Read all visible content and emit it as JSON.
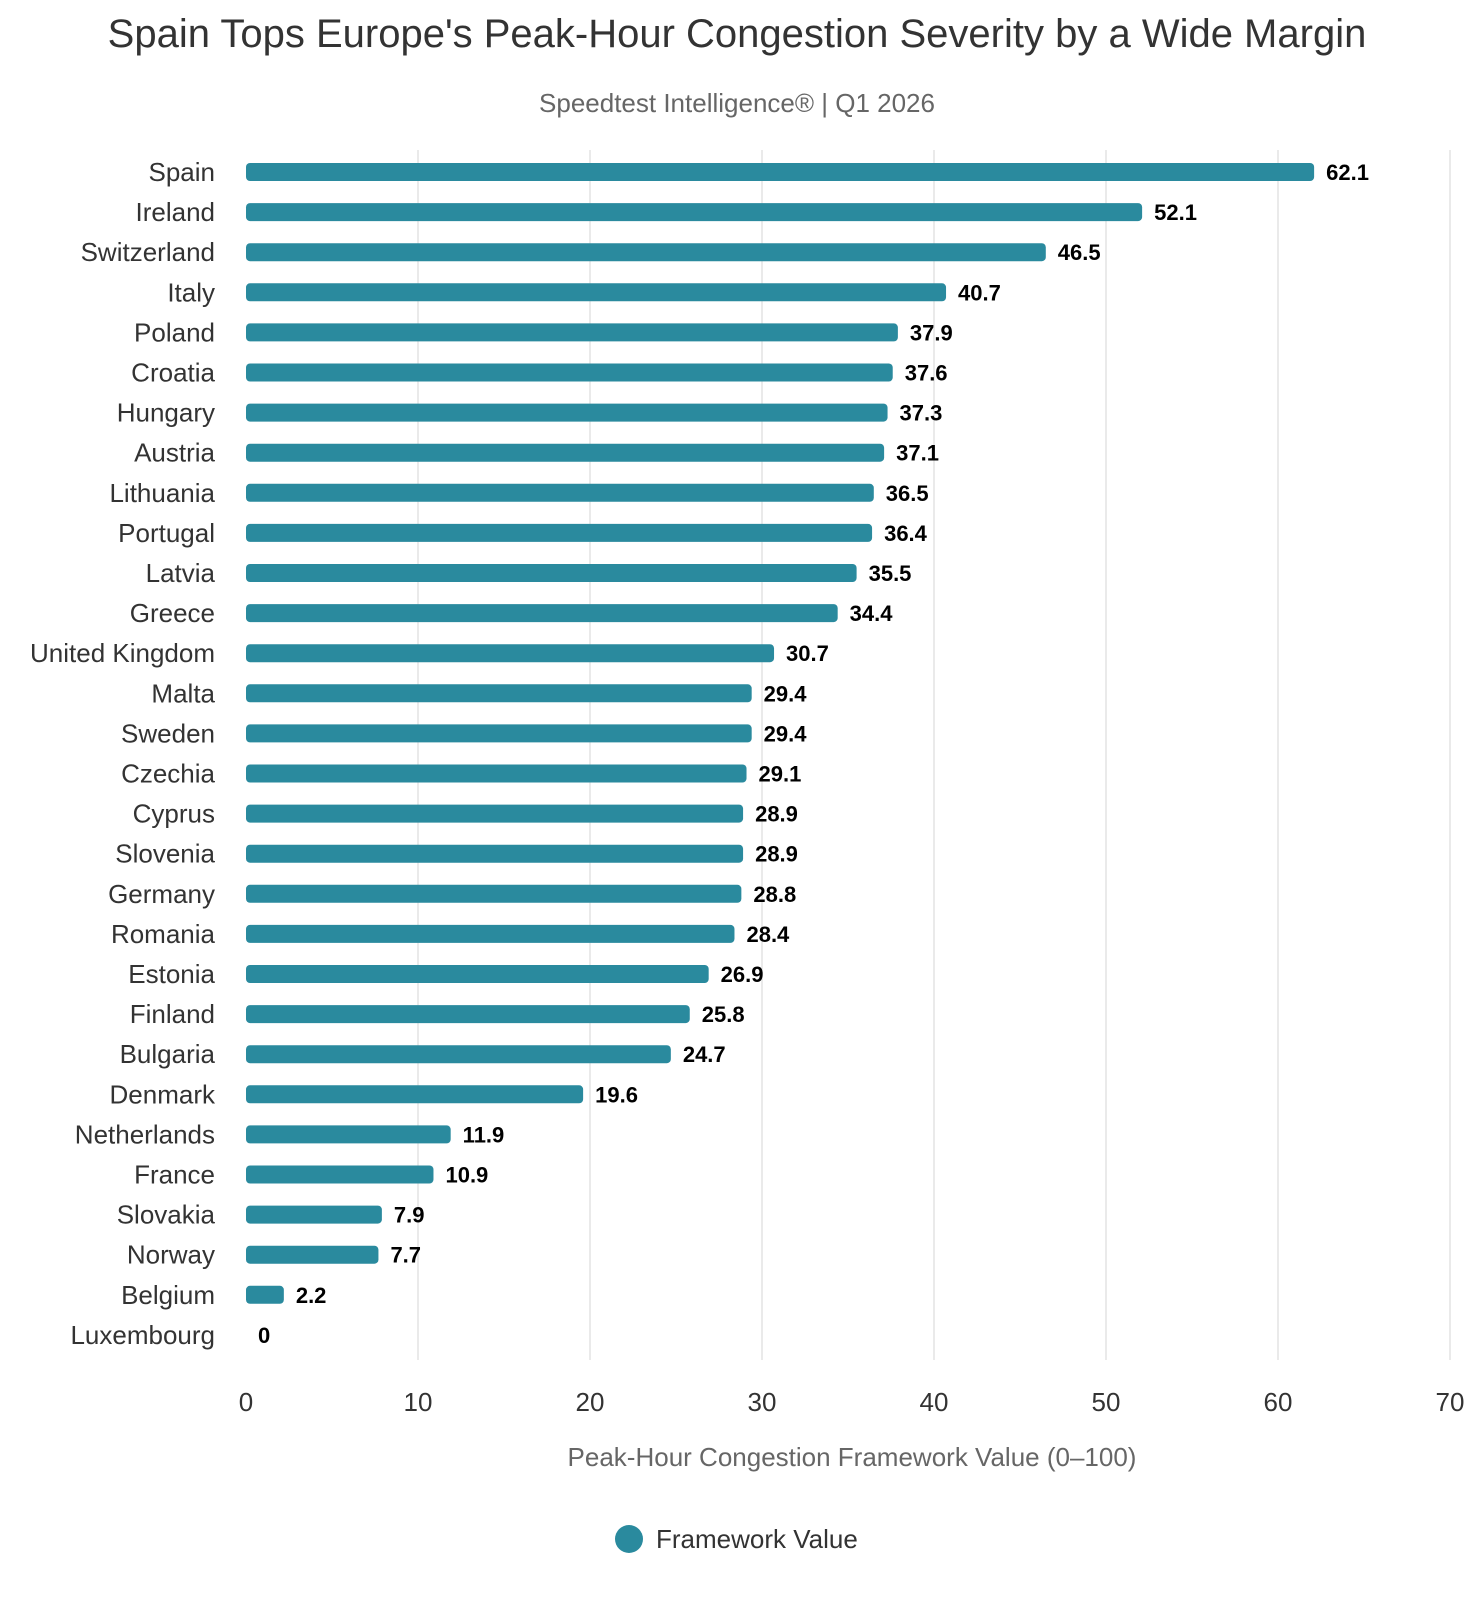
{
  "chart_data": {
    "type": "bar",
    "orientation": "horizontal",
    "title": "Spain Tops Europe's Peak-Hour Congestion Severity by a Wide Margin",
    "subtitle": "Speedtest Intelligence® | Q1 2026",
    "xlabel": "Peak-Hour Congestion Framework Value (0–100)",
    "ylabel": "",
    "xlim": [
      0,
      70
    ],
    "xticks": [
      0,
      10,
      20,
      30,
      40,
      50,
      60,
      70
    ],
    "grid": "vertical",
    "legend_position": "bottom",
    "bar_color": "#2a8a9e",
    "series": [
      {
        "name": "Framework Value",
        "values": [
          62.1,
          52.1,
          46.5,
          40.7,
          37.9,
          37.6,
          37.3,
          37.1,
          36.5,
          36.4,
          35.5,
          34.4,
          30.7,
          29.4,
          29.4,
          29.1,
          28.9,
          28.9,
          28.8,
          28.4,
          26.9,
          25.8,
          24.7,
          19.6,
          11.9,
          10.9,
          7.9,
          7.7,
          2.2,
          0
        ]
      }
    ],
    "categories": [
      "Spain",
      "Ireland",
      "Switzerland",
      "Italy",
      "Poland",
      "Croatia",
      "Hungary",
      "Austria",
      "Lithuania",
      "Portugal",
      "Latvia",
      "Greece",
      "United Kingdom",
      "Malta",
      "Sweden",
      "Czechia",
      "Cyprus",
      "Slovenia",
      "Germany",
      "Romania",
      "Estonia",
      "Finland",
      "Bulgaria",
      "Denmark",
      "Netherlands",
      "France",
      "Slovakia",
      "Norway",
      "Belgium",
      "Luxembourg"
    ]
  }
}
